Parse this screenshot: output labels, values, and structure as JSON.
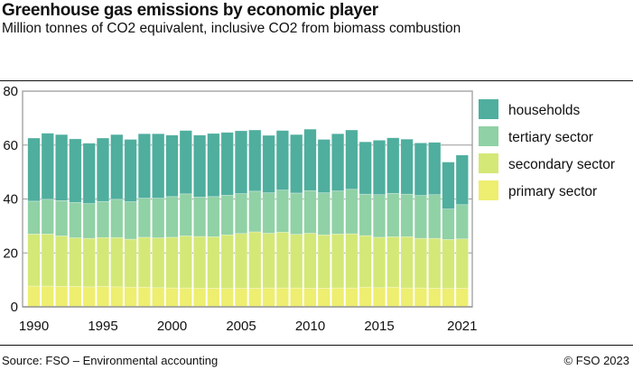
{
  "header": {
    "title": "Greenhouse gas emissions by economic player",
    "subtitle": "Million tonnes of CO2 equivalent, inclusive CO2 from biomass combustion"
  },
  "footer": {
    "source": "Source: FSO – Environmental accounting",
    "copyright": "© FSO 2023"
  },
  "chart_data": {
    "type": "bar",
    "stacked": true,
    "title": "Greenhouse gas emissions by economic player",
    "ylabel": "Million tonnes of CO2 equivalent, inclusive CO2 from biomass combustion",
    "ylim": [
      0,
      80
    ],
    "yticks": [
      0,
      20,
      40,
      60,
      80
    ],
    "xtick_labels": [
      "1990",
      "1995",
      "2000",
      "2005",
      "2010",
      "2015",
      "2021"
    ],
    "grid": true,
    "legend_position": "right",
    "categories": [
      1990,
      1991,
      1992,
      1993,
      1994,
      1995,
      1996,
      1997,
      1998,
      1999,
      2000,
      2001,
      2002,
      2003,
      2004,
      2005,
      2006,
      2007,
      2008,
      2009,
      2010,
      2011,
      2012,
      2013,
      2014,
      2015,
      2016,
      2017,
      2018,
      2019,
      2020,
      2021
    ],
    "series": [
      {
        "name": "primary sector",
        "color": "#eeee70",
        "values": [
          7.7,
          7.7,
          7.6,
          7.6,
          7.4,
          7.6,
          7.4,
          7.3,
          7.3,
          7.1,
          7.0,
          7.0,
          6.9,
          6.9,
          6.8,
          6.9,
          6.9,
          7.0,
          7.0,
          7.0,
          6.9,
          6.9,
          7.0,
          7.0,
          7.3,
          7.1,
          7.3,
          7.0,
          7.0,
          6.9,
          6.8,
          6.9
        ]
      },
      {
        "name": "secondary sector",
        "color": "#d4e877",
        "values": [
          19.3,
          19.3,
          18.7,
          18.0,
          18.0,
          18.1,
          18.3,
          17.8,
          18.5,
          18.5,
          18.8,
          19.3,
          19.2,
          19.1,
          19.9,
          20.3,
          20.9,
          20.3,
          20.7,
          19.9,
          20.4,
          19.8,
          20.0,
          20.1,
          19.1,
          18.7,
          18.7,
          19.0,
          18.4,
          18.5,
          18.2,
          18.3
        ]
      },
      {
        "name": "tertiary sector",
        "color": "#90d1a5",
        "values": [
          12.2,
          12.9,
          13.1,
          13.1,
          12.9,
          13.4,
          14.2,
          13.9,
          14.5,
          14.7,
          15.1,
          15.6,
          14.6,
          14.9,
          14.7,
          14.8,
          15.1,
          15.0,
          15.6,
          15.3,
          15.8,
          15.6,
          16.0,
          16.5,
          15.4,
          15.8,
          16.1,
          15.8,
          15.9,
          16.2,
          11.3,
          12.7
        ]
      },
      {
        "name": "households",
        "color": "#4fae9e",
        "values": [
          23.4,
          24.5,
          24.5,
          23.6,
          22.4,
          23.5,
          24.0,
          23.1,
          23.9,
          23.9,
          22.8,
          23.5,
          23.0,
          23.4,
          23.3,
          23.3,
          22.7,
          21.3,
          22.1,
          21.7,
          22.8,
          19.8,
          21.2,
          22.0,
          19.4,
          20.2,
          20.6,
          20.4,
          19.5,
          19.4,
          17.4,
          18.4
        ]
      }
    ]
  }
}
